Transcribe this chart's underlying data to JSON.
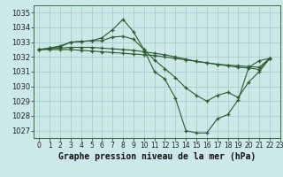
{
  "title": "Graphe pression niveau de la mer (hPa)",
  "bg_color": "#cce8e8",
  "grid_color": "#aacccc",
  "line_color": "#2d5a2d",
  "marker_color": "#2d5a2d",
  "xlim": [
    -0.5,
    23
  ],
  "ylim": [
    1026.5,
    1035.5
  ],
  "yticks": [
    1027,
    1028,
    1029,
    1030,
    1031,
    1032,
    1033,
    1034,
    1035
  ],
  "xticks": [
    0,
    1,
    2,
    3,
    4,
    5,
    6,
    7,
    8,
    9,
    10,
    11,
    12,
    13,
    14,
    15,
    16,
    17,
    18,
    19,
    20,
    21,
    22,
    23
  ],
  "series": [
    [
      1032.5,
      1032.6,
      1032.7,
      1033.0,
      1033.05,
      1033.1,
      1033.3,
      1033.85,
      1034.55,
      1033.7,
      1032.5,
      1031.0,
      1030.5,
      1029.2,
      1027.0,
      1026.85,
      1026.85,
      1027.8,
      1028.1,
      1029.1,
      1031.3,
      1031.75,
      1031.9
    ],
    [
      1032.5,
      1032.6,
      1032.75,
      1033.0,
      1033.05,
      1033.1,
      1033.1,
      1033.35,
      1033.4,
      1033.2,
      1032.5,
      1031.8,
      1031.2,
      1030.6,
      1029.9,
      1029.4,
      1029.0,
      1029.4,
      1029.6,
      1029.25,
      1030.3,
      1031.0,
      1031.9
    ],
    [
      1032.5,
      1032.5,
      1032.5,
      1032.5,
      1032.45,
      1032.4,
      1032.35,
      1032.3,
      1032.25,
      1032.2,
      1032.15,
      1032.1,
      1032.0,
      1031.9,
      1031.8,
      1031.7,
      1031.6,
      1031.5,
      1031.4,
      1031.3,
      1031.25,
      1031.15,
      1031.9
    ],
    [
      1032.5,
      1032.55,
      1032.6,
      1032.65,
      1032.65,
      1032.65,
      1032.6,
      1032.55,
      1032.5,
      1032.45,
      1032.35,
      1032.25,
      1032.15,
      1032.0,
      1031.85,
      1031.7,
      1031.6,
      1031.5,
      1031.45,
      1031.4,
      1031.35,
      1031.3,
      1031.9
    ]
  ],
  "title_fontsize": 7.0,
  "tick_fontsize": 5.5,
  "ylabel_fontsize": 6.5
}
